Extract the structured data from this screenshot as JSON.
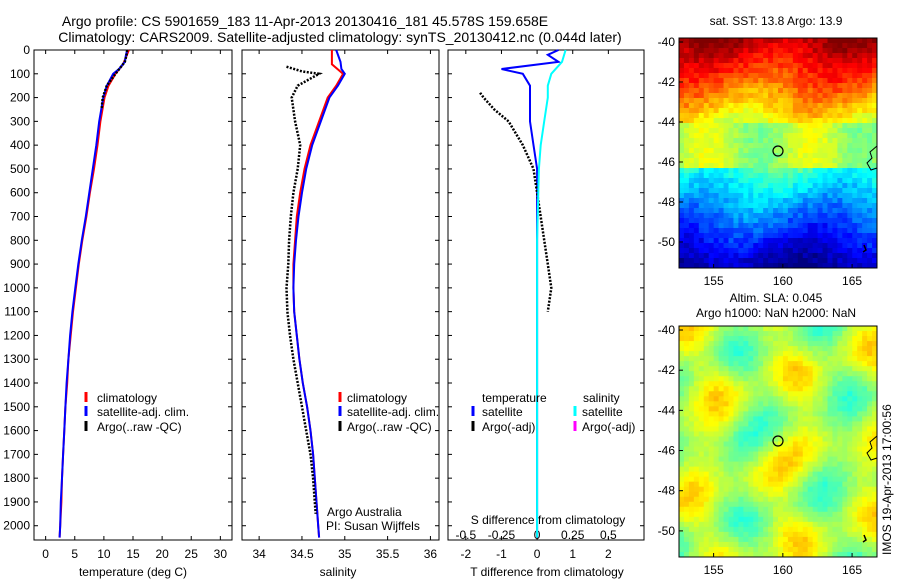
{
  "header": {
    "title_line1": "Argo profile: CS 5901659_183 11-Apr-2013 20130416_181 45.578S 159.658E",
    "title_line2": "Climatology: CARS2009. Satellite-adjusted climatology: synTS_20130412.nc (0.044d later)"
  },
  "colors": {
    "climatology": "#ff0000",
    "satellite": "#0000ff",
    "argo": "#000000",
    "satellite_salinity": "#00ffff",
    "argo_salinity": "#ff00ff"
  },
  "chart_data": [
    {
      "type": "line",
      "xlabel": "temperature (deg C)",
      "xticks": [
        "0",
        "5",
        "10",
        "15",
        "20",
        "25",
        "30"
      ],
      "xlim": [
        -2,
        32
      ],
      "ylim": [
        0,
        2060
      ],
      "yinverted": true,
      "yticks": [
        "0",
        "100",
        "200",
        "300",
        "400",
        "500",
        "600",
        "700",
        "800",
        "900",
        "1000",
        "1100",
        "1200",
        "1300",
        "1400",
        "1500",
        "1600",
        "1700",
        "1800",
        "1900",
        "2000"
      ],
      "legend": [
        "climatology",
        "satellite-adj. clim.",
        "Argo(..raw -QC)"
      ],
      "series": [
        {
          "name": "climatology",
          "depth": [
            0,
            60,
            100,
            150,
            200,
            300,
            400,
            500,
            600,
            700,
            800,
            900,
            1000,
            1100,
            1200,
            1300,
            1400,
            1500,
            1600,
            1700,
            1800,
            1900,
            2000,
            2050
          ],
          "values": [
            14.3,
            13.3,
            12.0,
            10.8,
            10.1,
            9.4,
            8.9,
            8.3,
            7.6,
            7.0,
            6.3,
            5.7,
            5.2,
            4.7,
            4.3,
            3.9,
            3.7,
            3.4,
            3.2,
            3.0,
            2.8,
            2.7,
            2.5,
            2.4
          ]
        },
        {
          "name": "satellite-adj. clim.",
          "depth": [
            0,
            20,
            50,
            80,
            100,
            150,
            200,
            300,
            400,
            500,
            600,
            700,
            800,
            900,
            1000,
            1100,
            1200,
            1300,
            1400,
            1500,
            1600,
            1700,
            1800,
            1900,
            2000,
            2050
          ],
          "values": [
            14.0,
            13.8,
            13.6,
            12.6,
            11.6,
            10.5,
            9.9,
            9.2,
            8.7,
            8.1,
            7.5,
            6.9,
            6.2,
            5.6,
            5.1,
            4.6,
            4.2,
            3.9,
            3.6,
            3.4,
            3.2,
            3.0,
            2.8,
            2.6,
            2.5,
            2.4
          ]
        },
        {
          "name": "Argo(..raw -QC)",
          "depth": [
            0,
            20,
            50,
            100,
            150,
            200,
            250
          ],
          "values": [
            14.0,
            13.9,
            13.6,
            12.0,
            10.5,
            9.8,
            9.6
          ]
        }
      ]
    },
    {
      "type": "line",
      "xlabel": "salinity",
      "xticks": [
        "34",
        "34.5",
        "35",
        "35.5",
        "36"
      ],
      "xlim": [
        33.8,
        36.1
      ],
      "ylim": [
        0,
        2060
      ],
      "yinverted": true,
      "legend": [
        "climatology",
        "satellite-adj. clim.",
        "Argo(..raw -QC)"
      ],
      "annotation": [
        "Argo Australia",
        "PI: Susan Wijffels"
      ],
      "series": [
        {
          "name": "climatology",
          "depth": [
            0,
            60,
            100,
            150,
            200,
            300,
            400,
            500,
            600,
            700,
            800,
            900,
            1000,
            1100,
            1200,
            1300,
            1400,
            1500,
            1600,
            1700,
            1800,
            1900,
            2000,
            2050
          ],
          "values": [
            34.85,
            34.85,
            34.98,
            34.9,
            34.8,
            34.7,
            34.6,
            34.53,
            34.48,
            34.44,
            34.42,
            34.4,
            34.4,
            34.41,
            34.44,
            34.47,
            34.51,
            34.56,
            34.6,
            34.63,
            34.65,
            34.67,
            34.69,
            34.7
          ]
        },
        {
          "name": "satellite-adj. clim.",
          "depth": [
            0,
            50,
            80,
            100,
            150,
            200,
            300,
            400,
            500,
            600,
            700,
            800,
            900,
            1000,
            1100,
            1200,
            1300,
            1400,
            1500,
            1600,
            1700,
            1800,
            1900,
            2000,
            2050
          ],
          "values": [
            34.9,
            34.95,
            34.96,
            35.0,
            34.92,
            34.82,
            34.72,
            34.62,
            34.55,
            34.5,
            34.46,
            34.43,
            34.41,
            34.4,
            34.41,
            34.44,
            34.47,
            34.51,
            34.56,
            34.6,
            34.63,
            34.65,
            34.67,
            34.69,
            34.7
          ]
        },
        {
          "name": "Argo(..raw -QC)",
          "depth": [
            70,
            90,
            100,
            150,
            200,
            300,
            400,
            500,
            600,
            700,
            800,
            900,
            1000,
            1100,
            1200,
            1300,
            1400,
            1500,
            1600,
            1700,
            1800,
            1900,
            1950
          ],
          "values": [
            34.32,
            34.5,
            34.7,
            34.45,
            34.38,
            34.42,
            34.48,
            34.45,
            34.4,
            34.37,
            34.35,
            34.34,
            34.32,
            34.33,
            34.36,
            34.4,
            34.45,
            34.5,
            34.55,
            34.6,
            34.63,
            34.65,
            34.66
          ]
        }
      ]
    },
    {
      "type": "line",
      "xlabel": "T difference from climatology",
      "xtop_label": "S difference from climatology",
      "xticks": [
        "-2",
        "-1",
        "0",
        "1",
        "2"
      ],
      "xticks_secondary": [
        "-0.5",
        "-0.25",
        "0",
        "0.25",
        "0.5"
      ],
      "xlim": [
        -2.5,
        3
      ],
      "ylim": [
        0,
        2060
      ],
      "yinverted": true,
      "legend_headers": [
        "temperature",
        "salinity"
      ],
      "legend": [
        "satellite",
        "Argo(-adj)",
        "satellite",
        "Argo(-adj)"
      ],
      "series": [
        {
          "name": "satellite",
          "depth": [
            0,
            20,
            50,
            80,
            100,
            150,
            200,
            300,
            400,
            500,
            600,
            800,
            1000,
            1500,
            2000,
            2050
          ],
          "values": [
            0.6,
            0.3,
            0.6,
            -1.0,
            -0.4,
            -0.2,
            -0.2,
            -0.2,
            -0.1,
            0.0,
            0.0,
            0.0,
            0.0,
            0.0,
            0.0,
            0.0
          ]
        },
        {
          "name": "Argo(-adj)",
          "depth": [
            180,
            200,
            250,
            300,
            400,
            500,
            600,
            900,
            1000,
            1100
          ],
          "values": [
            -1.6,
            -1.5,
            -1.2,
            -0.8,
            -0.4,
            -0.1,
            0.0,
            0.3,
            0.4,
            0.3
          ]
        },
        {
          "name": "satellite (salinity)",
          "depth": [
            0,
            50,
            100,
            150,
            200,
            300,
            400,
            500,
            800,
            1000,
            1500,
            2000,
            2050
          ],
          "values": [
            0.8,
            0.7,
            0.4,
            0.3,
            0.3,
            0.2,
            0.1,
            0.05,
            0.0,
            0.0,
            0.0,
            0.0,
            0.0
          ]
        }
      ]
    },
    {
      "type": "heatmap",
      "title": "sat. SST: 13.8  Argo: 13.9",
      "xticks": [
        "155",
        "160",
        "165"
      ],
      "yticks": [
        "-40",
        "-42",
        "-44",
        "-46",
        "-48",
        "-50"
      ],
      "xlim": [
        152.5,
        166.8
      ],
      "ylim": [
        -51.3,
        -39.8
      ]
    },
    {
      "type": "heatmap",
      "title": "Altim. SLA: 0.045",
      "subtitle": "Argo h1000: NaN h2000: NaN",
      "xticks": [
        "155",
        "160",
        "165"
      ],
      "yticks": [
        "-40",
        "-42",
        "-44",
        "-46",
        "-48",
        "-50"
      ],
      "xlim": [
        152.5,
        166.8
      ],
      "ylim": [
        -51.3,
        -39.8
      ]
    }
  ],
  "watermark": "IMOS 19-Apr-2013 17:00:56"
}
